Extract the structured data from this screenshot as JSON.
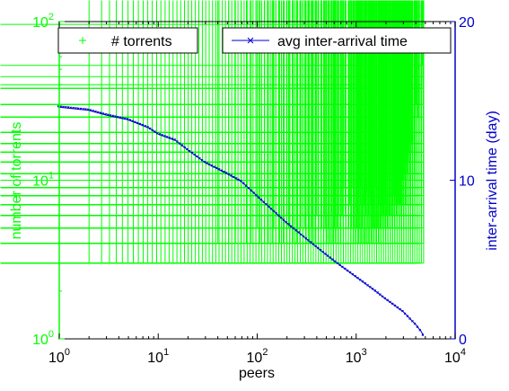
{
  "chart_data": {
    "type": "scatter",
    "x": {
      "label": "peers",
      "scale": "log",
      "lim": [
        1,
        10000
      ],
      "ticks": [
        {
          "value": 1,
          "base": "10",
          "exp": "0"
        },
        {
          "value": 10,
          "base": "10",
          "exp": "1"
        },
        {
          "value": 100,
          "base": "10",
          "exp": "2"
        },
        {
          "value": 1000,
          "base": "10",
          "exp": "3"
        },
        {
          "value": 10000,
          "base": "10",
          "exp": "4"
        }
      ]
    },
    "y_left": {
      "label": "number of torrents",
      "scale": "log",
      "lim": [
        1,
        100
      ],
      "color": "#00ff00",
      "ticks": [
        {
          "value": 1,
          "base": "10",
          "exp": "0"
        },
        {
          "value": 10,
          "base": "10",
          "exp": "1"
        },
        {
          "value": 100,
          "base": "10",
          "exp": "2"
        }
      ]
    },
    "y_right": {
      "label": "inter-arrival time (day)",
      "scale": "linear",
      "lim": [
        0,
        20
      ],
      "color": "#0000cc",
      "ticks": [
        {
          "value": 0,
          "label": "0"
        },
        {
          "value": 10,
          "label": "10"
        },
        {
          "value": 20,
          "label": "20"
        }
      ]
    },
    "legend": {
      "placement": "top"
    },
    "series": [
      {
        "name": "# torrents",
        "axis": "left",
        "marker": "+",
        "color": "#00ff00",
        "bands": [
          {
            "y": 3,
            "x_from": 2,
            "x_to": 4800
          },
          {
            "y": 4,
            "x_from": 40,
            "x_to": 4800
          },
          {
            "y": 5,
            "x_from": 100,
            "x_to": 4800
          },
          {
            "y": 6,
            "x_from": 200,
            "x_to": 4800
          },
          {
            "y": 7,
            "x_from": 500,
            "x_to": 4800
          },
          {
            "y": 8,
            "x_from": 700,
            "x_to": 4800
          },
          {
            "y": 9,
            "x_from": 750,
            "x_to": 4800
          },
          {
            "y": 10,
            "x_from": 900,
            "x_to": 4800
          },
          {
            "y": 11,
            "x_from": 1200,
            "x_to": 4800
          },
          {
            "y": 13,
            "x_from": 1500,
            "x_to": 4800
          },
          {
            "y": 15,
            "x_from": 2000,
            "x_to": 4800
          },
          {
            "y": 17,
            "x_from": 2500,
            "x_to": 4800
          },
          {
            "y": 20,
            "x_from": 3000,
            "x_to": 4800
          },
          {
            "y": 25,
            "x_from": 3500,
            "x_to": 4800
          },
          {
            "y": 30,
            "x_from": 4000,
            "x_to": 4800
          },
          {
            "y": 38,
            "x_from": 4300,
            "x_to": 4800
          }
        ],
        "points": [
          {
            "x": 4700,
            "y": 53
          },
          {
            "x": 4750,
            "y": 45
          },
          {
            "x": 4600,
            "y": 40
          },
          {
            "x": 4800,
            "y": 96
          }
        ]
      },
      {
        "name": "avg inter-arrival time",
        "axis": "right",
        "marker": "x",
        "color": "#0000cc",
        "points": [
          {
            "x": 1,
            "y": 14.6
          },
          {
            "x": 2,
            "y": 14.4
          },
          {
            "x": 3,
            "y": 14.1
          },
          {
            "x": 5,
            "y": 13.8
          },
          {
            "x": 8,
            "y": 13.3
          },
          {
            "x": 10,
            "y": 12.9
          },
          {
            "x": 15,
            "y": 12.5
          },
          {
            "x": 20,
            "y": 11.9
          },
          {
            "x": 30,
            "y": 11.1
          },
          {
            "x": 50,
            "y": 10.4
          },
          {
            "x": 70,
            "y": 9.9
          },
          {
            "x": 100,
            "y": 9.0
          },
          {
            "x": 150,
            "y": 8.0
          },
          {
            "x": 200,
            "y": 7.3
          },
          {
            "x": 300,
            "y": 6.4
          },
          {
            "x": 500,
            "y": 5.3
          },
          {
            "x": 700,
            "y": 4.6
          },
          {
            "x": 1000,
            "y": 3.9
          },
          {
            "x": 1500,
            "y": 3.1
          },
          {
            "x": 2000,
            "y": 2.5
          },
          {
            "x": 3000,
            "y": 1.7
          },
          {
            "x": 4000,
            "y": 0.9
          },
          {
            "x": 4500,
            "y": 0.5
          },
          {
            "x": 4800,
            "y": 0.2
          }
        ]
      }
    ]
  }
}
